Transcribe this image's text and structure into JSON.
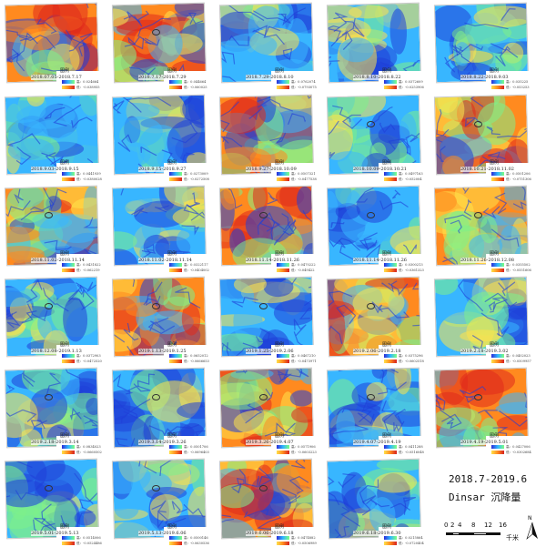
{
  "title": {
    "line1": "2018.7-2019.6",
    "line2": "Dinsar 沉降量"
  },
  "legend": {
    "title": "图例",
    "high_label": "高",
    "low_label": "低"
  },
  "scale": {
    "ticks": [
      "0",
      "2",
      "4",
      "8",
      "12",
      "16"
    ],
    "unit": "千米"
  },
  "north": {
    "label": "N"
  },
  "colors": {
    "blue": "#1f3fd8",
    "cyan": "#38b6ff",
    "green": "#7df08a",
    "yellow": "#ffe34a",
    "orange": "#ff8a1f",
    "red": "#e02a1c"
  },
  "panels": [
    {
      "date": "2018.07.05-2018.7.17",
      "high": "高：0.024664",
      "low": "低：-0.038955",
      "palette": "warm",
      "marker": false
    },
    {
      "date": "2018.7.17-2018.7.29",
      "high": "高：0.044664",
      "low": "低：-0.060025",
      "palette": "warm",
      "marker": true
    },
    {
      "date": "2018.7.29-2018.8.10",
      "high": "高：0.0762074",
      "low": "低：-0.0793075",
      "palette": "cool",
      "marker": false
    },
    {
      "date": "2018.8.10-2018.8.22",
      "high": "高：0.0372609",
      "low": "低：-0.0253906",
      "palette": "cool",
      "marker": false
    },
    {
      "date": "2018.8.22-2018.9.03",
      "high": "高：0.035225",
      "low": "低：-0.053253",
      "palette": "cool",
      "marker": false
    },
    {
      "date": "2018.9.03-2018.9.15",
      "high": "高：0.0441939",
      "low": "低：-0.0380028",
      "palette": "cool",
      "marker": false
    },
    {
      "date": "2018.9.15-2018.9.27",
      "high": "高：0.0273009",
      "low": "低：-0.0272508",
      "palette": "cool",
      "marker": false
    },
    {
      "date": "2018.9.27-2018.10.09",
      "high": "高：0.0507321",
      "low": "低：-0.0477538",
      "palette": "warm",
      "marker": false
    },
    {
      "date": "2018.10.09-2018.10.21",
      "high": "高：0.0497163",
      "low": "低：-0.052004",
      "palette": "cool",
      "marker": true
    },
    {
      "date": "2018.10.21-2018.11.02",
      "high": "高：0.0501206",
      "low": "低：-0.0751306",
      "palette": "warm",
      "marker": true
    },
    {
      "date": "2018.11.02-2018.11.14",
      "high": "高：0.0431822",
      "low": "低：-0.062219",
      "palette": "warm",
      "marker": true
    },
    {
      "date": "2018.11.02-2018.11.14",
      "high": "高：0.0322117",
      "low": "低：-0.0404002",
      "palette": "cool",
      "marker": false
    },
    {
      "date": "2018.11.14-2018.11.26",
      "high": "高：0.0470222",
      "low": "低：-0.049422",
      "palette": "warm",
      "marker": true
    },
    {
      "date": "2018.11.14-2018.11.26",
      "high": "高：0.0300213",
      "low": "低：-0.0361323",
      "palette": "cool",
      "marker": true
    },
    {
      "date": "2018.11.26-2018.12.08",
      "high": "高：0.0355502",
      "low": "低：-0.0551606",
      "palette": "warm",
      "marker": true
    },
    {
      "date": "2018.12.08-2019.1.13",
      "high": "高：0.0372903",
      "low": "低：-0.0472520",
      "palette": "cool",
      "marker": true
    },
    {
      "date": "2019.1.13-2019.1.25",
      "high": "高：0.0652012",
      "low": "低：-0.0666653",
      "palette": "warm",
      "marker": true
    },
    {
      "date": "2019.1.25-2019.2.06",
      "high": "高：0.0467210",
      "low": "低：-0.0473971",
      "palette": "cool",
      "marker": true
    },
    {
      "date": "2019.2.06-2019.2.18",
      "high": "高：0.0375296",
      "low": "低：-0.0602518",
      "palette": "warm",
      "marker": true
    },
    {
      "date": "2019.2.18-2019.3.02",
      "high": "高：0.0402023",
      "low": "低：-0.0509957",
      "palette": "cool",
      "marker": false
    },
    {
      "date": "2019.2.18-2019.3.14",
      "high": "高：0.0834023",
      "low": "低：-0.0660502",
      "palette": "cool",
      "marker": true
    },
    {
      "date": "2019.3.14-2019.3.26",
      "high": "高：0.0501706",
      "low": "低：-0.0696403",
      "palette": "cool",
      "marker": true
    },
    {
      "date": "2019.3.26-2019.4.07",
      "high": "高：0.0571906",
      "low": "低：-0.0603223",
      "palette": "warm",
      "marker": true
    },
    {
      "date": "2019.4.07-2019.4.19",
      "high": "高：0.0411288",
      "low": "低：-0.0516048",
      "palette": "cool",
      "marker": true
    },
    {
      "date": "2019.4.19-2019.5.01",
      "high": "高：0.0427006",
      "low": "低：-0.0302684",
      "palette": "warm",
      "marker": true
    },
    {
      "date": "2019.5.01-2019.5.13",
      "high": "高：0.0514006",
      "low": "低：-0.0524486",
      "palette": "cool",
      "marker": true
    },
    {
      "date": "2019.5.13-2019.6.06",
      "high": "高：0.0500146",
      "low": "低：-0.0630536",
      "palette": "cool",
      "marker": true
    },
    {
      "date": "2019.6.06-2019.6.18",
      "high": "高：0.0474882",
      "low": "低：-0.0506989",
      "palette": "warm",
      "marker": true
    },
    {
      "date": "2019.6.18-2019.6.30",
      "high": "高：0.0215864",
      "low": "低：-0.0720404",
      "palette": "cool",
      "marker": false
    }
  ]
}
